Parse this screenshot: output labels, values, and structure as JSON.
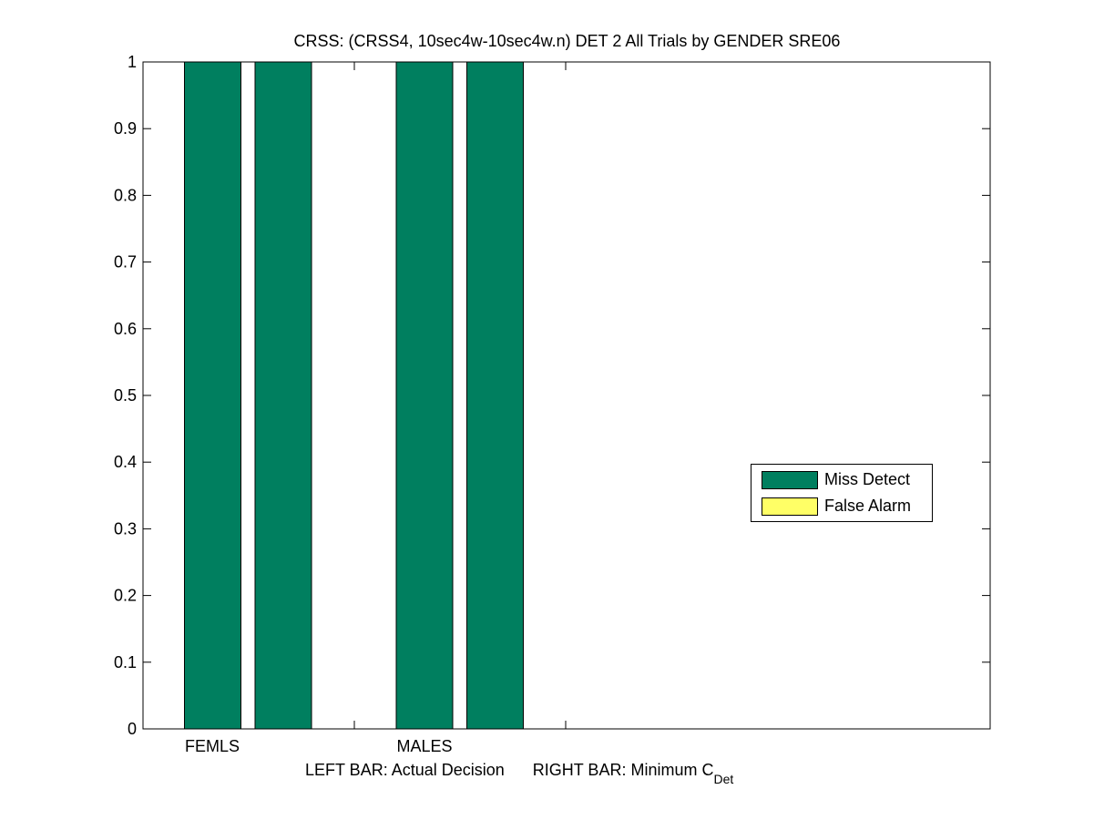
{
  "chart_data": {
    "type": "bar",
    "title": "CRSS: (CRSS4, 10sec4w-10sec4w.n) DET 2 All Trials by GENDER SRE06",
    "xlabel_left": "LEFT BAR: Actual Decision",
    "xlabel_right": "RIGHT BAR: Minimum C",
    "xlabel_subscript": "Det",
    "ylim": [
      0,
      1
    ],
    "yticks": [
      "0",
      "0.1",
      "0.2",
      "0.3",
      "0.4",
      "0.5",
      "0.6",
      "0.7",
      "0.8",
      "0.9",
      "1"
    ],
    "categories": [
      "FEMLS",
      "MALES"
    ],
    "bars": [
      {
        "group": "FEMLS",
        "bar": "Actual Decision",
        "miss_detect": 1.0,
        "false_alarm": 0.0
      },
      {
        "group": "FEMLS",
        "bar": "Minimum CDet",
        "miss_detect": 1.0,
        "false_alarm": 0.0
      },
      {
        "group": "MALES",
        "bar": "Actual Decision",
        "miss_detect": 1.0,
        "false_alarm": 0.0
      },
      {
        "group": "MALES",
        "bar": "Minimum CDet",
        "miss_detect": 1.0,
        "false_alarm": 0.0
      }
    ],
    "series": [
      {
        "name": "Miss Detect",
        "color": "#007f5f"
      },
      {
        "name": "False Alarm",
        "color": "#ffff66"
      }
    ],
    "legend_position": "right-center",
    "grid": false
  }
}
